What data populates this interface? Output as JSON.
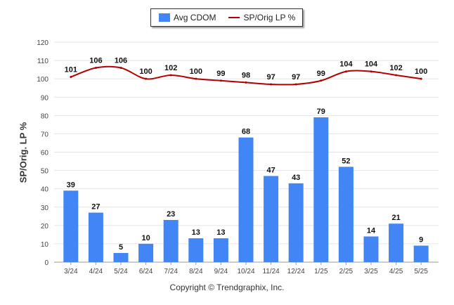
{
  "chart_data": {
    "type": "bar",
    "categories": [
      "3/24",
      "4/24",
      "5/24",
      "6/24",
      "7/24",
      "8/24",
      "9/24",
      "10/24",
      "11/24",
      "12/24",
      "1/25",
      "2/25",
      "3/25",
      "4/25",
      "5/25"
    ],
    "series": [
      {
        "name": "Avg CDOM",
        "type": "bar",
        "color": "#4285F4",
        "values": [
          39,
          27,
          5,
          10,
          23,
          13,
          13,
          68,
          47,
          43,
          79,
          52,
          14,
          21,
          9
        ]
      },
      {
        "name": "SP/Orig LP %",
        "type": "line",
        "color": "#B30000",
        "values": [
          101,
          106,
          106,
          100,
          102,
          100,
          99,
          98,
          97,
          97,
          99,
          104,
          104,
          102,
          100
        ]
      }
    ],
    "ylabel": "SP/Orig. LP %",
    "ylim": [
      0,
      120
    ],
    "yticks": [
      0,
      10,
      20,
      30,
      40,
      50,
      60,
      70,
      80,
      90,
      100,
      110,
      120
    ],
    "grid": true,
    "legend_position": "top"
  },
  "legend": {
    "bar_label": "Avg CDOM",
    "line_label": "SP/Orig LP %"
  },
  "footer": {
    "copyright": "Copyright © Trendgraphix, Inc."
  }
}
